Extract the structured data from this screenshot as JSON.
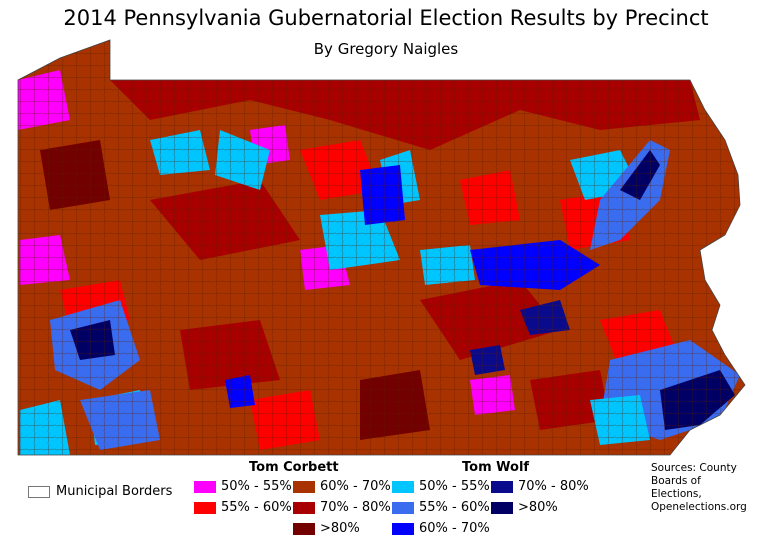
{
  "title": "2014 Pennsylvania Gubernatorial Election Results by Precinct",
  "subtitle": "By Gregory Naigles",
  "legend": {
    "municipal_label": "Municipal Borders",
    "corbett": {
      "name": "Tom Corbett",
      "items": [
        {
          "label": "50% - 55%",
          "color": "#ff00ff"
        },
        {
          "label": "55% - 60%",
          "color": "#ff0000"
        },
        {
          "label": "60% - 70%",
          "color": "#a83200"
        },
        {
          "label": "70% - 80%",
          "color": "#a80000"
        },
        {
          "label": ">80%",
          "color": "#730000"
        }
      ]
    },
    "wolf": {
      "name": "Tom Wolf",
      "items": [
        {
          "label": "50% - 55%",
          "color": "#00c5ff"
        },
        {
          "label": "55% - 60%",
          "color": "#3a6cf0"
        },
        {
          "label": "60% - 70%",
          "color": "#0000ff"
        },
        {
          "label": "70% - 80%",
          "color": "#0a0a8c"
        },
        {
          "label": ">80%",
          "color": "#000064"
        }
      ]
    }
  },
  "sources": "Sources: County\nBoards of\nElections,\nOpenelections.org"
}
